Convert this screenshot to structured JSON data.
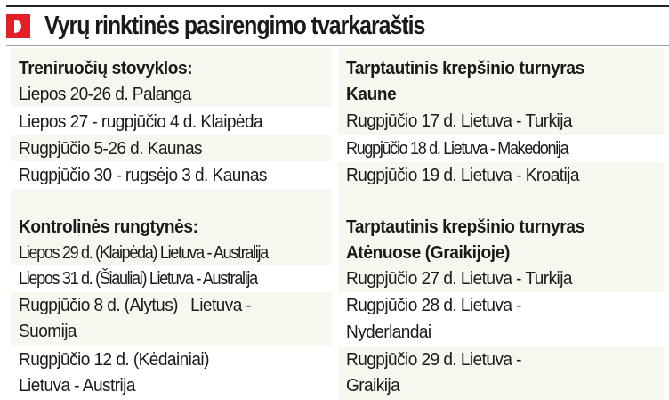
{
  "header": {
    "title": "Vyrų rinktinės pasirengimo tvarkaraštis",
    "logo_letter": "D",
    "brand_color": "#e31e24"
  },
  "left": {
    "training": {
      "heading": "Treniruočių stovyklos:",
      "items": [
        "Liepos 20-26 d. Palanga",
        "Liepos 27 - rugpjūčio 4 d. Klaipėda",
        "Rugpjūčio 5-26 d. Kaunas",
        "Rugpjūčio 30 - rugsėjo 3 d. Kaunas"
      ]
    },
    "friendlies": {
      "heading": "Kontrolinės rungtynės:",
      "items": [
        "Liepos 29 d. (Klaipėda) Lietuva - Australija",
        "Liepos 31 d. (Šiauliai) Lietuva - Australija",
        "Rugpjūčio 8 d. (Alytus)   Lietuva -",
        "Suomija",
        "Rugpjūčio 12 d. (Kėdainiai)",
        "Lietuva - Austrija"
      ]
    }
  },
  "right": {
    "kaunas": {
      "heading": [
        "Tarptautinis krepšinio turnyras",
        "Kaune"
      ],
      "items": [
        "Rugpjūčio 17 d. Lietuva - Turkija",
        "Rugpjūčio 18 d. Lietuva - Makedonija",
        "Rugpjūčio 19 d. Lietuva - Kroatija"
      ]
    },
    "athens": {
      "heading": [
        "Tarptautinis krepšinio turnyras",
        "Atėnuose (Graikijoje)"
      ],
      "items": [
        "Rugpjūčio 27 d. Lietuva - Turkija",
        "Rugpjūčio 28 d. Lietuva -",
        "Nyderlandai",
        "Rugpjūčio 29 d. Lietuva -",
        "Graikija"
      ]
    }
  },
  "colors": {
    "row_shade": "#f7f6ef",
    "text": "#1a1a1a"
  }
}
